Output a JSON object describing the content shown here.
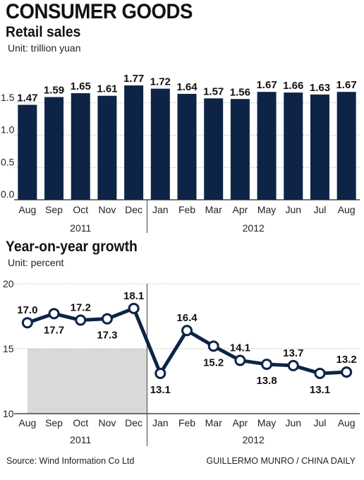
{
  "title": "CONSUMER GOODS",
  "charts": {
    "retail": {
      "subtitle": "Retail sales",
      "unit": "Unit: trillion yuan"
    },
    "growth": {
      "subtitle": "Year-on-year growth",
      "unit": "Unit: percent"
    }
  },
  "source": "Source: Wind Information Co Ltd",
  "credit": "GUILLERMO MUNRO / CHINA DAILY",
  "colors": {
    "bar": "#0d2447",
    "line": "#0d2447",
    "shade": "#d9d9d9"
  },
  "chart_data": [
    {
      "type": "bar",
      "title": "Retail sales",
      "ylabel": "Unit: trillion yuan",
      "categories": [
        "Aug",
        "Sep",
        "Oct",
        "Nov",
        "Dec",
        "Jan",
        "Feb",
        "Mar",
        "Apr",
        "May",
        "Jun",
        "Jul",
        "Aug"
      ],
      "years": [
        {
          "label": "2011",
          "from": 0,
          "to": 4
        },
        {
          "label": "2012",
          "from": 5,
          "to": 12
        }
      ],
      "values": [
        1.47,
        1.59,
        1.65,
        1.61,
        1.77,
        1.72,
        1.64,
        1.57,
        1.56,
        1.67,
        1.66,
        1.63,
        1.67
      ],
      "value_labels": [
        "1.47",
        "1.59",
        "1.65",
        "1.61",
        "1.77",
        "1.72",
        "1.64",
        "1.57",
        "1.56",
        "1.67",
        "1.66",
        "1.63",
        "1.67"
      ],
      "yticks": [
        "0.0",
        "0.5",
        "1.0",
        "1.5"
      ],
      "ylim": [
        0,
        2.0
      ],
      "grid": true
    },
    {
      "type": "line",
      "title": "Year-on-year growth",
      "ylabel": "Unit: percent",
      "categories": [
        "Aug",
        "Sep",
        "Oct",
        "Nov",
        "Dec",
        "Jan",
        "Feb",
        "Mar",
        "Apr",
        "May",
        "Jun",
        "Jul",
        "Aug"
      ],
      "years": [
        {
          "label": "2011",
          "from": 0,
          "to": 4
        },
        {
          "label": "2012",
          "from": 5,
          "to": 12
        }
      ],
      "values": [
        17.0,
        17.7,
        17.2,
        17.3,
        18.1,
        13.1,
        16.4,
        15.2,
        14.1,
        13.8,
        13.7,
        13.1,
        13.2
      ],
      "value_labels": [
        "17.0",
        "17.7",
        "17.2",
        "17.3",
        "18.1",
        "13.1",
        "16.4",
        "15.2",
        "14.1",
        "13.8",
        "13.7",
        "13.1",
        "13.2"
      ],
      "yticks": [
        "10",
        "15",
        "20"
      ],
      "ylim": [
        10,
        20
      ],
      "shaded_period": "2011",
      "grid": true
    }
  ]
}
